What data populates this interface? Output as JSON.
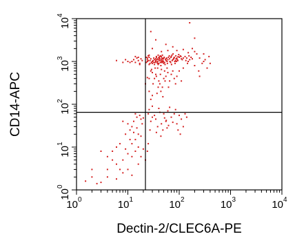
{
  "chart_data": {
    "type": "scatter",
    "xlabel": "Dectin-2/CLEC6A-PE",
    "ylabel": "CD14-APC",
    "xscale": "log",
    "yscale": "log",
    "xlim": [
      1,
      10000
    ],
    "ylim": [
      1,
      10000
    ],
    "x_ticks": [
      {
        "base": "10",
        "exp": "0",
        "value": 1
      },
      {
        "base": "10",
        "exp": "1",
        "value": 10
      },
      {
        "base": "10",
        "exp": "2",
        "value": 100
      },
      {
        "base": "10",
        "exp": "3",
        "value": 1000
      },
      {
        "base": "10",
        "exp": "4",
        "value": 10000
      }
    ],
    "y_ticks": [
      {
        "base": "10",
        "exp": "0",
        "value": 1
      },
      {
        "base": "10",
        "exp": "1",
        "value": 10
      },
      {
        "base": "10",
        "exp": "2",
        "value": 100
      },
      {
        "base": "10",
        "exp": "3",
        "value": 1000
      },
      {
        "base": "10",
        "exp": "4",
        "value": 10000
      }
    ],
    "quadrant_gate": {
      "x": 22,
      "y": 65
    },
    "point_color": "#d42020",
    "grid": false,
    "legend": "none",
    "series": [
      {
        "points": [
          [
            40,
            1100
          ],
          [
            35,
            1050
          ],
          [
            45,
            950
          ],
          [
            50,
            1200
          ],
          [
            30,
            1000
          ],
          [
            38,
            900
          ],
          [
            55,
            1150
          ],
          [
            42,
            1300
          ],
          [
            33,
            850
          ],
          [
            48,
            1050
          ],
          [
            60,
            1100
          ],
          [
            28,
            1150
          ],
          [
            36,
            1250
          ],
          [
            44,
            800
          ],
          [
            52,
            950
          ],
          [
            39,
            1400
          ],
          [
            31,
            1050
          ],
          [
            47,
            1150
          ],
          [
            58,
            1000
          ],
          [
            34,
            950
          ],
          [
            41,
            1050
          ],
          [
            46,
            1200
          ],
          [
            37,
            1100
          ],
          [
            53,
            850
          ],
          [
            29,
            950
          ],
          [
            43,
            1350
          ],
          [
            49,
            1000
          ],
          [
            35,
            1150
          ],
          [
            62,
            1250
          ],
          [
            40,
            900
          ],
          [
            32,
            1200
          ],
          [
            45,
            1100
          ],
          [
            38,
            1000
          ],
          [
            56,
            1050
          ],
          [
            27,
            1050
          ],
          [
            50,
            900
          ],
          [
            42,
            1150
          ],
          [
            36,
            1300
          ],
          [
            48,
            950
          ],
          [
            33,
            1100
          ],
          [
            65,
            1150
          ],
          [
            44,
            1050
          ],
          [
            39,
            850
          ],
          [
            51,
            1250
          ],
          [
            30,
            900
          ],
          [
            46,
            1000
          ],
          [
            41,
            1200
          ],
          [
            54,
            1100
          ],
          [
            37,
            950
          ],
          [
            47,
            1400
          ],
          [
            26,
            1250
          ],
          [
            43,
            950
          ],
          [
            59,
            900
          ],
          [
            35,
            1000
          ],
          [
            40,
            1250
          ],
          [
            49,
            1150
          ],
          [
            32,
            950
          ],
          [
            45,
            1300
          ],
          [
            38,
            1150
          ],
          [
            57,
            1200
          ],
          [
            70,
            1300
          ],
          [
            75,
            1100
          ],
          [
            80,
            1250
          ],
          [
            68,
            950
          ],
          [
            85,
            1050
          ],
          [
            90,
            1200
          ],
          [
            72,
            1400
          ],
          [
            66,
            1000
          ],
          [
            78,
            1150
          ],
          [
            95,
            1300
          ],
          [
            100,
            1250
          ],
          [
            110,
            1150
          ],
          [
            88,
            1000
          ],
          [
            120,
            1200
          ],
          [
            105,
            1350
          ],
          [
            92,
            1100
          ],
          [
            76,
            1500
          ],
          [
            83,
            900
          ],
          [
            98,
            1450
          ],
          [
            115,
            1100
          ],
          [
            64,
            1350
          ],
          [
            73,
            1050
          ],
          [
            87,
            1150
          ],
          [
            69,
            1250
          ],
          [
            82,
            1000
          ],
          [
            94,
            1050
          ],
          [
            108,
            1300
          ],
          [
            79,
            1200
          ],
          [
            71,
            850
          ],
          [
            86,
            1350
          ],
          [
            25,
            1050
          ],
          [
            24,
            1200
          ],
          [
            23,
            950
          ],
          [
            26,
            850
          ],
          [
            24,
            1100
          ],
          [
            25,
            1350
          ],
          [
            23,
            1250
          ],
          [
            27,
            900
          ],
          [
            24,
            1000
          ],
          [
            26,
            1400
          ],
          [
            16,
            1050
          ],
          [
            14,
            950
          ],
          [
            18,
            1150
          ],
          [
            12,
            1000
          ],
          [
            15,
            1200
          ],
          [
            17,
            900
          ],
          [
            13,
            1100
          ],
          [
            19,
            1050
          ],
          [
            11,
            950
          ],
          [
            16,
            1250
          ],
          [
            10,
            1000
          ],
          [
            9,
            1100
          ],
          [
            8,
            950
          ],
          [
            14,
            1300
          ],
          [
            17,
            850
          ],
          [
            140,
            1200
          ],
          [
            160,
            1100
          ],
          [
            130,
            1300
          ],
          [
            150,
            1000
          ],
          [
            170,
            1250
          ],
          [
            180,
            1150
          ],
          [
            135,
            1050
          ],
          [
            155,
            1350
          ],
          [
            145,
            900
          ],
          [
            6,
            1050
          ],
          [
            28,
            600
          ],
          [
            35,
            500
          ],
          [
            45,
            650
          ],
          [
            50,
            400
          ],
          [
            30,
            550
          ],
          [
            40,
            350
          ],
          [
            55,
            450
          ],
          [
            42,
            300
          ],
          [
            38,
            700
          ],
          [
            60,
            550
          ],
          [
            33,
            400
          ],
          [
            47,
            250
          ],
          [
            52,
            600
          ],
          [
            36,
            450
          ],
          [
            44,
            200
          ],
          [
            65,
            350
          ],
          [
            58,
            700
          ],
          [
            31,
            300
          ],
          [
            70,
            500
          ],
          [
            26,
            400
          ],
          [
            48,
            150
          ],
          [
            39,
            250
          ],
          [
            53,
            350
          ],
          [
            34,
            700
          ],
          [
            62,
            250
          ],
          [
            75,
            600
          ],
          [
            43,
            500
          ],
          [
            29,
            650
          ],
          [
            80,
            400
          ],
          [
            37,
            180
          ],
          [
            26,
            200
          ],
          [
            22,
            300
          ],
          [
            28,
            130
          ],
          [
            30,
            160
          ],
          [
            24,
            420
          ],
          [
            100,
            600
          ],
          [
            90,
            450
          ],
          [
            120,
            700
          ],
          [
            85,
            300
          ],
          [
            110,
            350
          ],
          [
            40,
            80
          ],
          [
            50,
            60
          ],
          [
            35,
            45
          ],
          [
            60,
            70
          ],
          [
            45,
            35
          ],
          [
            30,
            90
          ],
          [
            55,
            40
          ],
          [
            70,
            50
          ],
          [
            38,
            30
          ],
          [
            65,
            85
          ],
          [
            48,
            25
          ],
          [
            33,
            55
          ],
          [
            58,
            28
          ],
          [
            42,
            65
          ],
          [
            75,
            38
          ],
          [
            52,
            48
          ],
          [
            36,
            22
          ],
          [
            62,
            32
          ],
          [
            44,
            18
          ],
          [
            56,
            42
          ],
          [
            80,
            60
          ],
          [
            90,
            35
          ],
          [
            100,
            55
          ],
          [
            85,
            75
          ],
          [
            110,
            45
          ],
          [
            130,
            60
          ],
          [
            95,
            25
          ],
          [
            120,
            30
          ],
          [
            140,
            50
          ],
          [
            105,
            20
          ],
          [
            28,
            40
          ],
          [
            25,
            60
          ],
          [
            27,
            25
          ],
          [
            30,
            50
          ],
          [
            26,
            75
          ],
          [
            15,
            50
          ],
          [
            12,
            30
          ],
          [
            18,
            45
          ],
          [
            14,
            60
          ],
          [
            16,
            20
          ],
          [
            13,
            40
          ],
          [
            19,
            35
          ],
          [
            11,
            25
          ],
          [
            17,
            55
          ],
          [
            14,
            15
          ],
          [
            10,
            35
          ],
          [
            9,
            20
          ],
          [
            12,
            12
          ],
          [
            15,
            28
          ],
          [
            18,
            18
          ],
          [
            8,
            40
          ],
          [
            16,
            10
          ],
          [
            11,
            15
          ],
          [
            20,
            48
          ],
          [
            13,
            22
          ],
          [
            7,
            12
          ],
          [
            5,
            8
          ],
          [
            6,
            10
          ],
          [
            4,
            6
          ],
          [
            8,
            5
          ],
          [
            10,
            7
          ],
          [
            6,
            4
          ],
          [
            9,
            9
          ],
          [
            12,
            6
          ],
          [
            7,
            3
          ],
          [
            3,
            8
          ],
          [
            4,
            3
          ],
          [
            5,
            5
          ],
          [
            2,
            2
          ],
          [
            3,
            1.5
          ],
          [
            14,
            8
          ],
          [
            18,
            6
          ],
          [
            10,
            3
          ],
          [
            16,
            4
          ],
          [
            20,
            9
          ],
          [
            8,
            2.5
          ],
          [
            12,
            2.2
          ],
          [
            6,
            1.8
          ],
          [
            2.5,
            1.4
          ],
          [
            2,
            3
          ],
          [
            1.5,
            1.6
          ],
          [
            4,
            2
          ],
          [
            22,
            5
          ],
          [
            25,
            12
          ],
          [
            24,
            8
          ],
          [
            60,
            1800
          ],
          [
            200,
            1700
          ],
          [
            180,
            2000
          ],
          [
            55,
            2500
          ],
          [
            75,
            2200
          ],
          [
            90,
            1800
          ],
          [
            120,
            1900
          ],
          [
            45,
            1700
          ],
          [
            30,
            2000
          ],
          [
            150,
            1600
          ],
          [
            280,
            900
          ],
          [
            320,
            1100
          ],
          [
            350,
            700
          ],
          [
            300,
            1000
          ],
          [
            250,
            1200
          ],
          [
            200,
            800
          ],
          [
            400,
            900
          ],
          [
            240,
            600
          ],
          [
            380,
            1300
          ],
          [
            220,
            1500
          ],
          [
            160,
            8000
          ],
          [
            28,
            5000
          ],
          [
            35,
            3200
          ],
          [
            200,
            3500
          ],
          [
            300,
            1500
          ],
          [
            250,
            450
          ]
        ]
      }
    ]
  }
}
